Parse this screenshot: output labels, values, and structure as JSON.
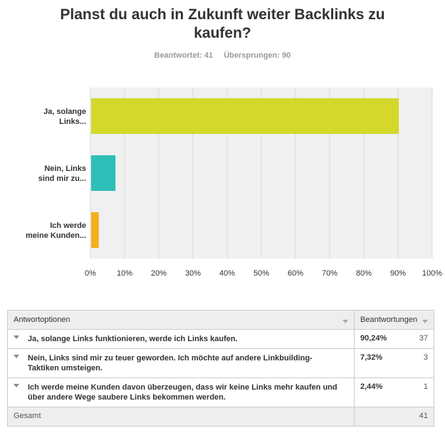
{
  "title": "Planst du auch in Zukunft weiter Backlinks zu kaufen?",
  "stats": {
    "answered": "Beantwortet: 41",
    "skipped": "Übersprungen: 90"
  },
  "chart_data": {
    "type": "bar",
    "orientation": "horizontal",
    "categories_line1": [
      "Ja, solange",
      "Nein, Links",
      "Ich werde"
    ],
    "categories_line2": [
      "Links...",
      "sind mir zu...",
      "meine Kunden..."
    ],
    "values": [
      90.24,
      7.32,
      2.44
    ],
    "xlim": [
      0,
      100
    ],
    "ticks": [
      "0%",
      "10%",
      "20%",
      "30%",
      "40%",
      "50%",
      "60%",
      "70%",
      "80%",
      "90%",
      "100%"
    ],
    "colors": [
      "#d3d82b",
      "#2dbfb8",
      "#f5ae1c"
    ],
    "grid": true
  },
  "table": {
    "header_options": "Antwortoptionen",
    "header_responses": "Beantwortungen",
    "rows": [
      {
        "text": "Ja, solange Links funktionieren, werde ich Links kaufen.",
        "pct": "90,24%",
        "count": "37"
      },
      {
        "text": "Nein, Links sind mir zu teuer geworden. Ich möchte auf andere Linkbuilding-Taktiken umsteigen.",
        "pct": "7,32%",
        "count": "3"
      },
      {
        "text": "Ich werde meine Kunden davon überzeugen, dass wir keine Links mehr kaufen und über andere Wege saubere Links bekommen werden.",
        "pct": "2,44%",
        "count": "1"
      }
    ],
    "total_label": "Gesamt",
    "total_count": "41"
  }
}
